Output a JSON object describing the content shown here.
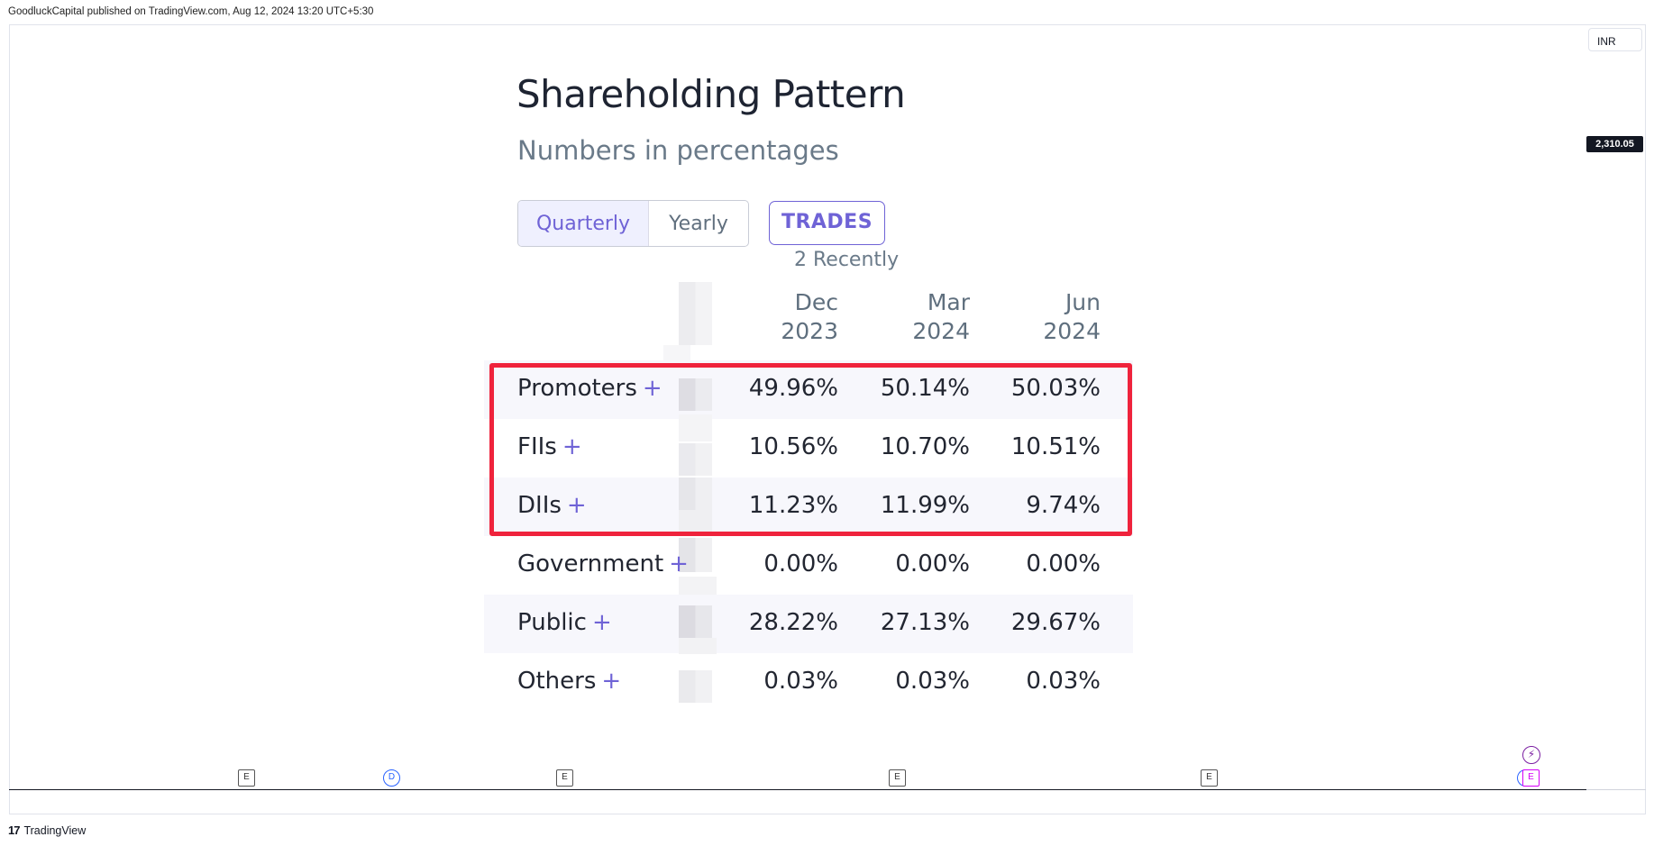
{
  "publication": {
    "header_text": "GoodluckCapital published on TradingView.com, Aug 12, 2024 13:20 UTC+5:30"
  },
  "chart": {
    "currency": "INR",
    "last_price": "2,310.05",
    "events": [
      {
        "type": "earnings",
        "label": "E",
        "icon": "earnings-icon"
      },
      {
        "type": "dividend",
        "label": "D",
        "icon": "dividend-icon"
      },
      {
        "type": "earnings",
        "label": "E",
        "icon": "earnings-icon"
      },
      {
        "type": "earnings",
        "label": "E",
        "icon": "earnings-icon"
      },
      {
        "type": "earnings",
        "label": "E",
        "icon": "earnings-icon"
      },
      {
        "type": "earnings",
        "label": "E",
        "icon": "earnings-icon",
        "highlight": true
      }
    ],
    "flash_icon": "⚡"
  },
  "footer": {
    "brand": "TradingView",
    "logo": "17"
  },
  "panel": {
    "title": "Shareholding Pattern",
    "subtitle": "Numbers in percentages",
    "toggle": {
      "active": "Quarterly",
      "inactive": "Yearly"
    },
    "trades_button": "TRADES",
    "trades_note": "2 Recently",
    "columns": [
      {
        "month": "Dec",
        "year": "2023"
      },
      {
        "month": "Mar",
        "year": "2024"
      },
      {
        "month": "Jun",
        "year": "2024"
      }
    ],
    "rows": [
      {
        "label": "Promoters",
        "plus": "+",
        "values": [
          "49.96%",
          "50.14%",
          "50.03%"
        ]
      },
      {
        "label": "FIIs",
        "plus": "+",
        "values": [
          "10.56%",
          "10.70%",
          "10.51%"
        ]
      },
      {
        "label": "DIIs",
        "plus": "+",
        "values": [
          "11.23%",
          "11.99%",
          "9.74%"
        ]
      },
      {
        "label": "Government",
        "plus": "+",
        "values": [
          "0.00%",
          "0.00%",
          "0.00%"
        ]
      },
      {
        "label": "Public",
        "plus": "+",
        "values": [
          "28.22%",
          "27.13%",
          "29.67%"
        ]
      },
      {
        "label": "Others",
        "plus": "+",
        "values": [
          "0.03%",
          "0.03%",
          "0.03%"
        ]
      }
    ]
  },
  "colors": {
    "accent": "#6f63d6",
    "highlight_box": "#ef233c",
    "row_shade": "#f7f7fc"
  }
}
